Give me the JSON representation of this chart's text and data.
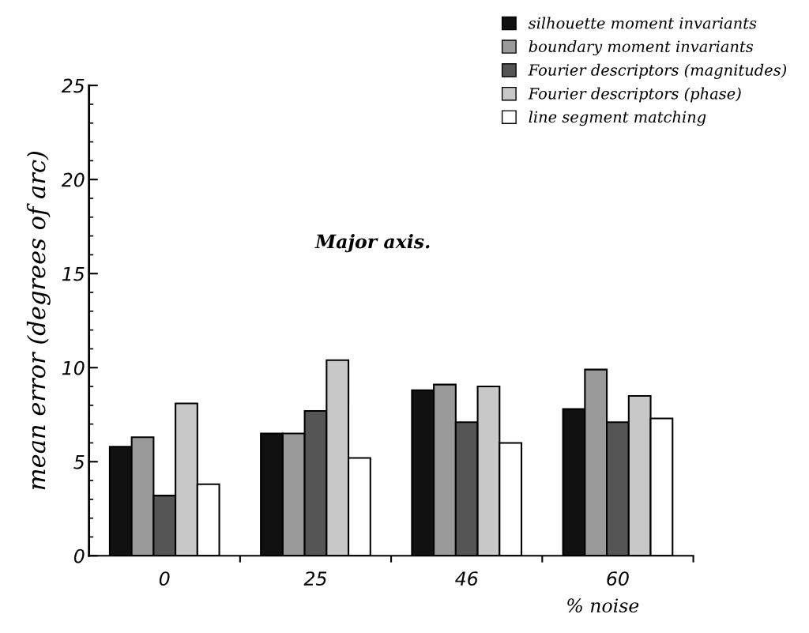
{
  "chart_data": {
    "type": "bar",
    "title": "Major axis.",
    "xlabel": "% noise",
    "ylabel": "mean error (degrees of arc)",
    "categories": [
      "0",
      "25",
      "46",
      "60"
    ],
    "series": [
      {
        "name": "silhouette moment invariants",
        "color": "#111111",
        "values": [
          5.8,
          6.5,
          8.8,
          7.8
        ]
      },
      {
        "name": "boundary moment invariants",
        "color": "#9a9a9a",
        "values": [
          6.3,
          6.5,
          9.1,
          9.9
        ]
      },
      {
        "name": "Fourier descriptors (magnitudes)",
        "color": "#555555",
        "values": [
          3.2,
          7.7,
          7.1,
          7.1
        ]
      },
      {
        "name": "Fourier descriptors (phase)",
        "color": "#c8c8c8",
        "values": [
          8.1,
          10.4,
          9.0,
          8.5
        ]
      },
      {
        "name": "line segment matching",
        "color": "#ffffff",
        "values": [
          3.8,
          5.2,
          6.0,
          7.3
        ]
      }
    ],
    "ylim": [
      0,
      25
    ],
    "yticks": [
      0,
      5,
      10,
      15,
      20,
      25
    ],
    "grid": false,
    "legend": "top right"
  }
}
